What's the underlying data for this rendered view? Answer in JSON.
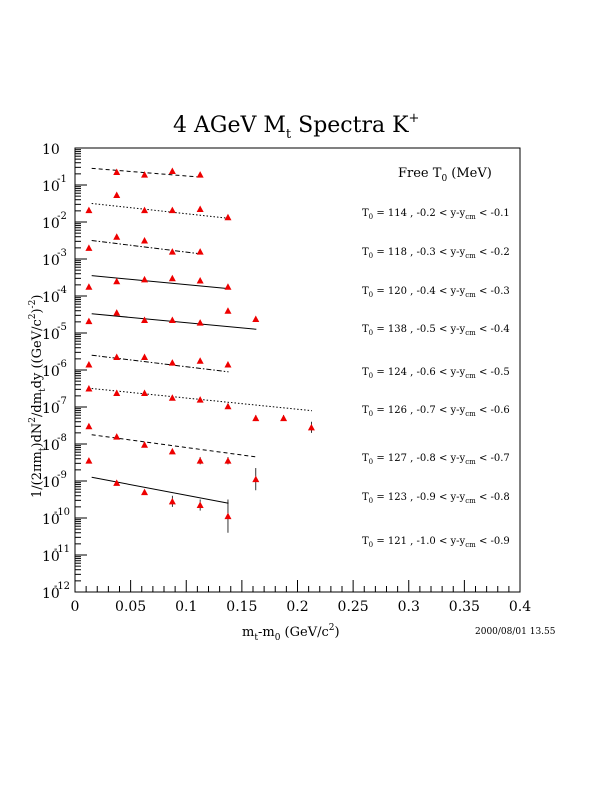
{
  "chart_data": {
    "type": "scatter",
    "title": "4 AGeV M",
    "title_sub": "t",
    "title_tail": " Spectra K",
    "title_sup": "+",
    "xlabel": {
      "prefix": "m",
      "sub1": "t",
      "mid": "-m",
      "sub2": "0",
      "tail": " (GeV/c",
      "sup": "2",
      "end": ")"
    },
    "ylabel": {
      "prefix": "1/(2πm",
      "sub1": "t",
      "mid": ")dN",
      "sup1": "2",
      "mid2": "/dm",
      "sub2": "t",
      "tail": "dy ((GeV/c",
      "sup2": "2",
      "end": ")",
      "sup3": "-2",
      "end2": ")"
    },
    "xlim": [
      0,
      0.4
    ],
    "ylim_log10": [
      -12,
      0
    ],
    "x_ticks": [
      "0",
      "0.05",
      "0.1",
      "0.15",
      "0.2",
      "0.25",
      "0.3",
      "0.35",
      "0.4"
    ],
    "y_tick_base": "10",
    "y_tick_exponents": [
      "",
      "-1",
      "-2",
      "-3",
      "-4",
      "-5",
      "-6",
      "-7",
      "-8",
      "-9",
      "-10",
      "-11",
      "-12"
    ],
    "legend_header": {
      "text": "Free T",
      "sub": "0",
      "tail": " (MeV)"
    },
    "timestamp": "2000/08/01   13.55",
    "marker_color": "#ee0000",
    "series": [
      {
        "T0": "114",
        "range": "-0.2 < y-y",
        "range_tail": " < -0.1",
        "line_style": "dashed",
        "line": {
          "x": [
            0.015,
            0.11
          ],
          "log10y": [
            -0.55,
            -0.78
          ]
        },
        "points": {
          "x": [
            0.0375,
            0.0625,
            0.0875,
            0.1125
          ],
          "log10y": [
            -0.65,
            -0.72,
            -0.62,
            -0.72
          ],
          "err": [
            0.05,
            0.05,
            0.05,
            0.05
          ]
        }
      },
      {
        "T0": "118",
        "range": "-0.3 < y-y",
        "range_tail": " < -0.2",
        "line_style": "dotted",
        "line": {
          "x": [
            0.015,
            0.138
          ],
          "log10y": [
            -1.5,
            -1.9
          ]
        },
        "points": {
          "x": [
            0.0125,
            0.0375,
            0.0625,
            0.0875,
            0.1125,
            0.1375
          ],
          "log10y": [
            -1.68,
            -1.27,
            -1.68,
            -1.68,
            -1.65,
            -1.87
          ],
          "err": [
            0.05,
            0.05,
            0.05,
            0.05,
            0.05,
            0.05
          ]
        }
      },
      {
        "T0": "120",
        "range": "-0.4 < y-y",
        "range_tail": " < -0.3",
        "line_style": "dashdot",
        "line": {
          "x": [
            0.015,
            0.11
          ],
          "log10y": [
            -2.5,
            -2.85
          ]
        },
        "points": {
          "x": [
            0.0125,
            0.0375,
            0.0625,
            0.0875,
            0.1125
          ],
          "log10y": [
            -2.7,
            -2.4,
            -2.5,
            -2.8,
            -2.8
          ],
          "err": [
            0.05,
            0.05,
            0.05,
            0.05,
            0.05
          ]
        }
      },
      {
        "T0": "138",
        "range": "-0.5 < y-y",
        "range_tail": " < -0.4",
        "line_style": "solid",
        "line": {
          "x": [
            0.015,
            0.138
          ],
          "log10y": [
            -3.45,
            -3.8
          ]
        },
        "points": {
          "x": [
            0.0125,
            0.0375,
            0.0625,
            0.0875,
            0.1125,
            0.1375
          ],
          "log10y": [
            -3.75,
            -3.6,
            -3.55,
            -3.52,
            -3.58,
            -3.75
          ],
          "err": [
            0.05,
            0.05,
            0.05,
            0.05,
            0.05,
            0.05
          ]
        }
      },
      {
        "T0": "124",
        "range": "-0.6 < y-y",
        "range_tail": " < -0.5",
        "line_style": "solid",
        "line": {
          "x": [
            0.015,
            0.163
          ],
          "log10y": [
            -4.48,
            -4.9
          ]
        },
        "points": {
          "x": [
            0.0125,
            0.0375,
            0.0625,
            0.0875,
            0.1125,
            0.1375,
            0.1625
          ],
          "log10y": [
            -4.68,
            -4.45,
            -4.65,
            -4.65,
            -4.72,
            -4.4,
            -4.62
          ],
          "err": [
            0.05,
            0.05,
            0.05,
            0.05,
            0.05,
            0.05,
            0.05
          ]
        }
      },
      {
        "T0": "126",
        "range": "-0.7 < y-y",
        "range_tail": " < -0.6",
        "line_style": "dashdot",
        "line": {
          "x": [
            0.015,
            0.138
          ],
          "log10y": [
            -5.6,
            -6.05
          ]
        },
        "points": {
          "x": [
            0.0125,
            0.0375,
            0.0625,
            0.0875,
            0.1125,
            0.1375
          ],
          "log10y": [
            -5.85,
            -5.65,
            -5.65,
            -5.8,
            -5.75,
            -5.85
          ],
          "err": [
            0.05,
            0.05,
            0.05,
            0.05,
            0.05,
            0.05
          ]
        }
      },
      {
        "T0": "127",
        "range": "-0.8 < y-y",
        "range_tail": " < -0.7",
        "line_style": "dotted",
        "line": {
          "x": [
            0.015,
            0.213
          ],
          "log10y": [
            -6.5,
            -7.1
          ]
        },
        "points": {
          "x": [
            0.0125,
            0.0375,
            0.0625,
            0.0875,
            0.1125,
            0.1375,
            0.1625,
            0.1875,
            0.2125
          ],
          "log10y": [
            -6.5,
            -6.62,
            -6.62,
            -6.75,
            -6.8,
            -6.98,
            -7.3,
            -7.3,
            -7.55
          ],
          "err": [
            0.05,
            0.05,
            0.05,
            0.05,
            0.05,
            0.05,
            0.08,
            0.08,
            0.15
          ]
        }
      },
      {
        "T0": "123",
        "range": "-0.9 < y-y",
        "range_tail": " < -0.8",
        "line_style": "dashed",
        "line": {
          "x": [
            0.015,
            0.163
          ],
          "log10y": [
            -7.75,
            -8.35
          ]
        },
        "points": {
          "x": [
            0.0125,
            0.0375,
            0.0625,
            0.0875,
            0.1125,
            0.1375
          ],
          "log10y": [
            -7.52,
            -7.8,
            -8.02,
            -8.2,
            -8.45,
            -8.45
          ],
          "err": [
            0.05,
            0.05,
            0.05,
            0.05,
            0.1,
            0.1
          ]
        }
      },
      {
        "T0": "121",
        "range": "-1.0 < y-y",
        "range_tail": " < -0.9",
        "line_style": "solid",
        "line": {
          "x": [
            0.015,
            0.138
          ],
          "log10y": [
            -8.9,
            -9.6
          ]
        },
        "points": {
          "x": [
            0.0125,
            0.0375,
            0.0625,
            0.0875,
            0.1125,
            0.1375,
            0.1625
          ],
          "log10y": [
            -8.45,
            -9.05,
            -9.3,
            -9.55,
            -9.65,
            -9.95,
            -8.95
          ],
          "err": [
            0.05,
            0.05,
            0.05,
            0.15,
            0.15,
            0.45,
            0.3
          ]
        }
      }
    ]
  }
}
